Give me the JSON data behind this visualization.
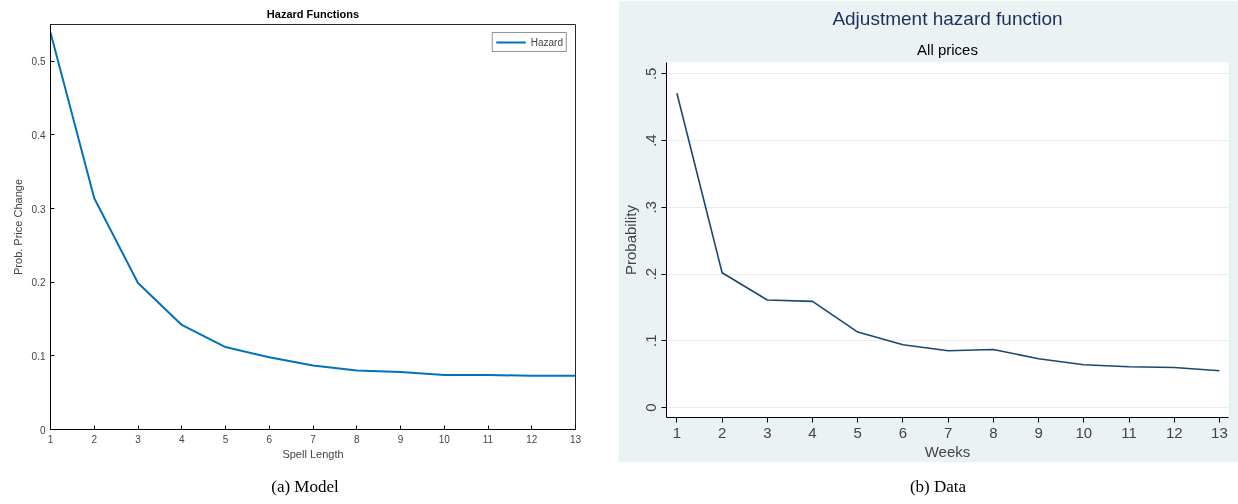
{
  "chart_data": [
    {
      "type": "line",
      "title": "Hazard Functions",
      "xlabel": "Spell Length",
      "ylabel": "Prob. Price Change",
      "x": [
        1,
        2,
        3,
        4,
        5,
        6,
        7,
        8,
        9,
        10,
        11,
        12,
        13
      ],
      "series": [
        {
          "name": "Hazard",
          "color": "#0072bd",
          "values": [
            0.539,
            0.314,
            0.199,
            0.142,
            0.112,
            0.098,
            0.087,
            0.08,
            0.078,
            0.074,
            0.074,
            0.073,
            0.073
          ]
        }
      ],
      "xlim": [
        1,
        13
      ],
      "ylim": [
        0,
        0.55
      ],
      "xticks": [
        1,
        2,
        3,
        4,
        5,
        6,
        7,
        8,
        9,
        10,
        11,
        12,
        13
      ],
      "yticks": [
        0,
        0.1,
        0.2,
        0.3,
        0.4,
        0.5
      ],
      "grid": false,
      "legend": "top right",
      "line_style": "solid",
      "annotations": [
        "(a) Model"
      ]
    },
    {
      "type": "line",
      "title": "Adjustment hazard function",
      "subtitle": "All prices",
      "xlabel": "Weeks",
      "ylabel": "Probability",
      "x": [
        1,
        2,
        3,
        4,
        5,
        6,
        7,
        8,
        9,
        10,
        11,
        12,
        13
      ],
      "series": [
        {
          "color": "#1a476f",
          "values": [
            0.471,
            0.202,
            0.161,
            0.159,
            0.113,
            0.094,
            0.085,
            0.087,
            0.073,
            0.064,
            0.061,
            0.06,
            0.055
          ]
        }
      ],
      "xlim": [
        0.77,
        13.2
      ],
      "ylim": [
        -0.015,
        0.517
      ],
      "xticks": [
        1,
        2,
        3,
        4,
        5,
        6,
        7,
        8,
        9,
        10,
        11,
        12,
        13
      ],
      "yticks": [
        0,
        {
          "value": 0.1,
          "label": ".1"
        },
        {
          "value": 0.2,
          "label": ".2"
        },
        {
          "value": 0.3,
          "label": ".3"
        },
        {
          "value": 0.4,
          "label": ".4"
        },
        {
          "value": 0.5,
          "label": ".5"
        }
      ],
      "grid": "y",
      "legend": false,
      "line_style": "solid",
      "annotations": [
        "(b) Data"
      ]
    }
  ]
}
